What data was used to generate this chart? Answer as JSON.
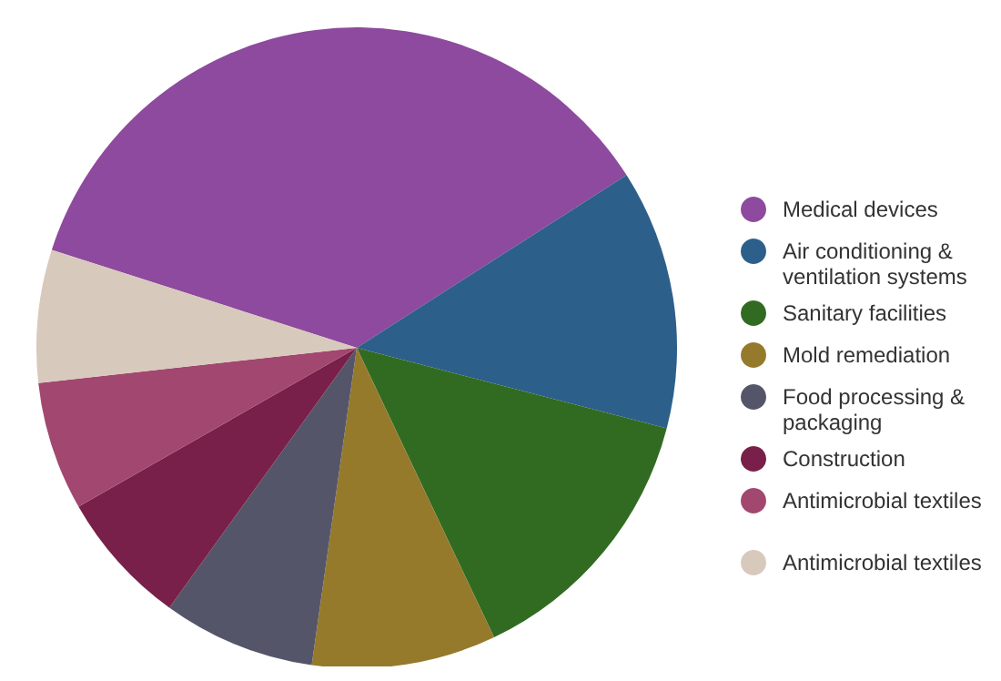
{
  "chart_data": {
    "type": "pie",
    "categories": [
      "Medical devices",
      "Air conditioning & ventilation systems",
      "Sanitary facilities",
      "Mold remediation",
      "Food processing & packaging",
      "Construction",
      "Antimicrobial textiles",
      "Antimicrobial textiles"
    ],
    "values": [
      36.0,
      13.1,
      13.9,
      9.3,
      7.7,
      6.8,
      6.5,
      6.7
    ],
    "colors": [
      "#8e4a9e",
      "#2d5f8b",
      "#316b22",
      "#957a2c",
      "#555569",
      "#782049",
      "#a2476f",
      "#d8c9bd"
    ],
    "legend": "right"
  }
}
